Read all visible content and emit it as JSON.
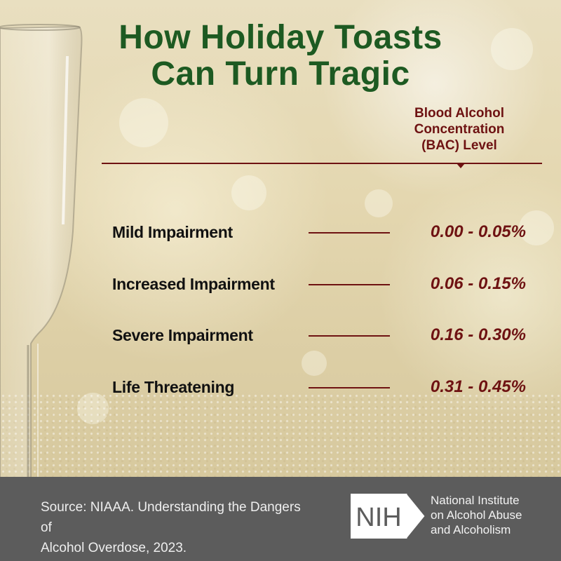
{
  "title": {
    "line1": "How Holiday Toasts",
    "line2": "Can Turn Tragic"
  },
  "bac_header": {
    "line1": "Blood Alcohol",
    "line2": "Concentration",
    "line3": "(BAC) Level"
  },
  "rows": [
    {
      "label": "Mild Impairment",
      "range": "0.00 - 0.05%"
    },
    {
      "label": "Increased Impairment",
      "range": "0.06 - 0.15%"
    },
    {
      "label": "Severe Impairment",
      "range": "0.16 - 0.30%"
    },
    {
      "label": "Life Threatening",
      "range": "0.31 - 0.45%"
    }
  ],
  "footer": {
    "source_line1": "Source: NIAAA. Understanding the Dangers of",
    "source_line2": "Alcohol Overdose, 2023.",
    "logo_text": "NIH",
    "institute_line1": "National Institute",
    "institute_line2": "on Alcohol Abuse",
    "institute_line3": "and Alcoholism"
  },
  "colors": {
    "title_green": "#1d5a22",
    "accent_maroon": "#6e1212",
    "footer_gray": "#5c5c5c"
  }
}
